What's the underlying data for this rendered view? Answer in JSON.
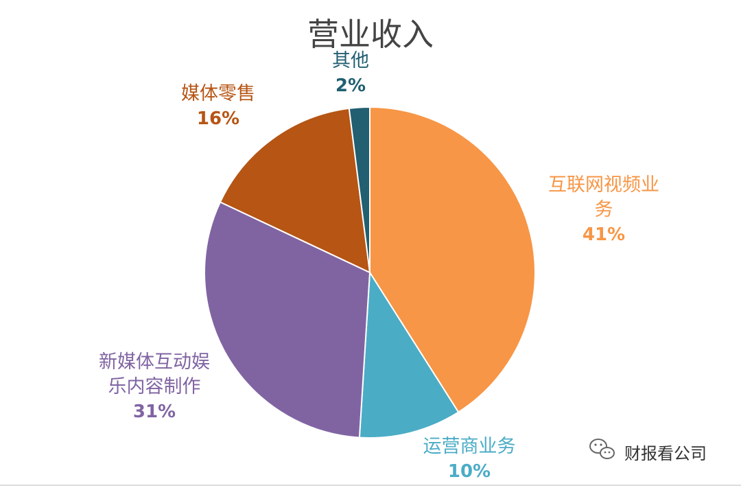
{
  "chart_data": {
    "type": "pie",
    "title": "营业收入",
    "categories": [
      "互联网视频业务",
      "运营商业务",
      "新媒体互动娱乐内容制作",
      "媒体零售",
      "其他"
    ],
    "values": [
      41,
      10,
      31,
      16,
      2
    ],
    "labels": [
      {
        "lines": [
          "互联网视频业",
          "务"
        ],
        "pct": "41%"
      },
      {
        "lines": [
          "运营商业务"
        ],
        "pct": "10%"
      },
      {
        "lines": [
          "新媒体互动娱",
          "乐内容制作"
        ],
        "pct": "31%"
      },
      {
        "lines": [
          "媒体零售"
        ],
        "pct": "16%"
      },
      {
        "lines": [
          "其他"
        ],
        "pct": "2%"
      }
    ],
    "colors": [
      "#F79646",
      "#4BACC6",
      "#8064A2",
      "#B65514",
      "#215F71"
    ],
    "label_colors": [
      "#F79646",
      "#4BACC6",
      "#8064A2",
      "#B65514",
      "#215F71"
    ],
    "start_angle_deg": 0,
    "direction": "clockwise",
    "legend": "none"
  },
  "watermark": {
    "icon": "wechat-icon",
    "text": "财报看公司"
  }
}
